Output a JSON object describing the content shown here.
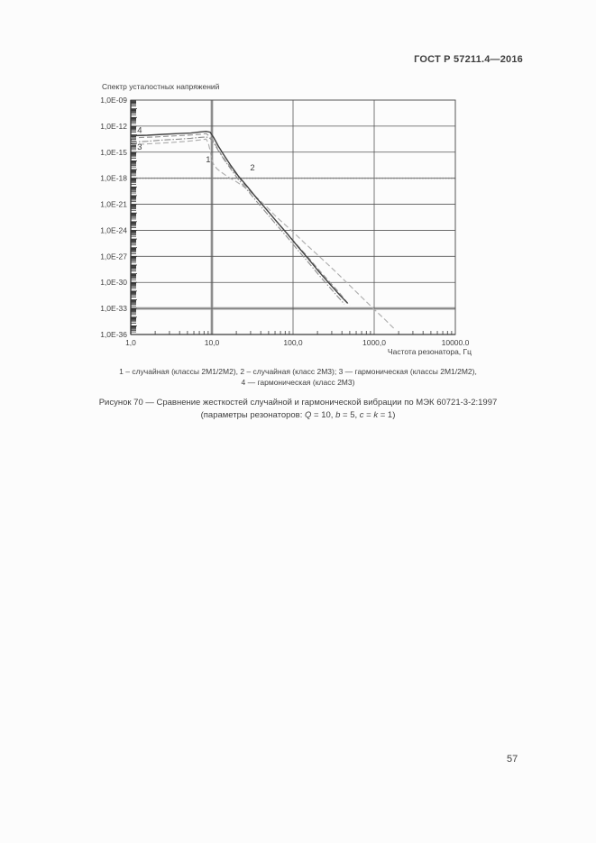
{
  "page": {
    "header": "ГОСТ Р 57211.4—2016",
    "page_number": "57"
  },
  "figure": {
    "legend_line1": "1 – случайная (классы 2М1/2М2), 2 – случайная (класс 2М3); 3 — гармоническая (классы 2М1/2М2),",
    "legend_line2": "4 — гармоническая (класс 2М3)",
    "caption_line1": "Рисунок 70 — Сравнение жесткостей случайной и гармонической вибрации по МЭК 60721-3-2:1997",
    "caption_params": {
      "prefix": "(параметры резонаторов: ",
      "q": "Q",
      "eq1": " = 10, ",
      "b": "b",
      "eq2": " = 5, ",
      "c": "c",
      "eq3": " = ",
      "k": "k",
      "eq4": " = 1)"
    }
  },
  "chart_data": {
    "type": "line",
    "title": "Спектр усталостных напряжений",
    "xlabel": "Частота резонатора, Гц",
    "ylabel": "",
    "x_scale": "log",
    "y_scale": "log",
    "x_range_hz": [
      1,
      10000
    ],
    "y_exponent_range": [
      -9,
      -36
    ],
    "grid": true,
    "colors": {
      "grid": "#565656",
      "axis": "#383838",
      "thick_reference": "#b2b2b2",
      "dotted_reference": "#808080",
      "text": "#3e3e3e"
    },
    "x_ticks": [
      {
        "value": 1,
        "label": "1,0"
      },
      {
        "value": 10,
        "label": "10,0"
      },
      {
        "value": 100,
        "label": "100,0"
      },
      {
        "value": 1000,
        "label": "1000,0"
      },
      {
        "value": 10000,
        "label": "10000.0"
      }
    ],
    "y_ticks": [
      {
        "exponent": -9,
        "label": "1,0E-09"
      },
      {
        "exponent": -12,
        "label": "1,0E-12"
      },
      {
        "exponent": -15,
        "label": "1,0E-15"
      },
      {
        "exponent": -18,
        "label": "1,0E-18"
      },
      {
        "exponent": -21,
        "label": "1,0E-21"
      },
      {
        "exponent": -24,
        "label": "1,0E-24"
      },
      {
        "exponent": -27,
        "label": "1,0E-27"
      },
      {
        "exponent": -30,
        "label": "1,0E-30"
      },
      {
        "exponent": -33,
        "label": "1,0E-33"
      },
      {
        "exponent": -36,
        "label": "1,0E-36"
      }
    ],
    "reference_lines": [
      {
        "name": "dotted-level-line",
        "exponent": -18,
        "style": "dotted"
      },
      {
        "name": "thick-gray-horizontal",
        "exponent": -33,
        "style": "thick-gray"
      },
      {
        "name": "thick-gray-vertical",
        "x_hz": 10,
        "style": "thick-gray"
      }
    ],
    "series": [
      {
        "name": "1 – случайная (классы 2М1/2М2)",
        "label": "1",
        "style": "dashed",
        "color": "#aeaeae",
        "points": [
          [
            1,
            -14.15
          ],
          [
            2,
            -14.0
          ],
          [
            3,
            -13.9
          ],
          [
            5,
            -13.75
          ],
          [
            7,
            -13.6
          ],
          [
            8.5,
            -13.5
          ],
          [
            9,
            -13.9
          ],
          [
            9.5,
            -14.8
          ],
          [
            10,
            -15.9
          ],
          [
            10.5,
            -16.4
          ],
          [
            11.5,
            -16.9
          ],
          [
            13,
            -17.3
          ],
          [
            15,
            -17.7
          ],
          [
            17.5,
            -18.1
          ],
          [
            20,
            -18.4
          ],
          [
            25,
            -19.0
          ],
          [
            31,
            -19.7
          ],
          [
            44,
            -21.0
          ],
          [
            63,
            -22.5
          ],
          [
            95,
            -24.0
          ],
          [
            140,
            -25.5
          ],
          [
            210,
            -27.0
          ],
          [
            320,
            -28.6
          ],
          [
            480,
            -30.2
          ],
          [
            700,
            -31.7
          ],
          [
            1000,
            -33.1
          ],
          [
            1400,
            -34.4
          ],
          [
            1750,
            -35.3
          ]
        ]
      },
      {
        "name": "2 – случайная (класс 2М3)",
        "label": "2",
        "style": "dashed",
        "color": "#979797",
        "points": [
          [
            1,
            -13.35
          ],
          [
            2,
            -13.25
          ],
          [
            3,
            -13.15
          ],
          [
            5,
            -13.05
          ],
          [
            7,
            -12.95
          ],
          [
            8.5,
            -12.85
          ],
          [
            10,
            -13.4
          ],
          [
            12.5,
            -15.0
          ],
          [
            15,
            -16.1
          ],
          [
            19,
            -17.3
          ],
          [
            24,
            -18.5
          ],
          [
            32,
            -19.8
          ],
          [
            43,
            -21.2
          ],
          [
            58,
            -22.6
          ],
          [
            80,
            -24.1
          ],
          [
            110,
            -25.6
          ],
          [
            150,
            -27.0
          ],
          [
            205,
            -28.5
          ],
          [
            280,
            -29.9
          ],
          [
            380,
            -31.3
          ],
          [
            500,
            -32.7
          ]
        ]
      },
      {
        "name": "3 — гармоническая (классы 2М1/2М2)",
        "label": "3",
        "style": "dashdot",
        "color": "#8f8f8f",
        "points": [
          [
            1,
            -13.85
          ],
          [
            1.6,
            -13.75
          ],
          [
            2.5,
            -13.6
          ],
          [
            4,
            -13.5
          ],
          [
            5.5,
            -13.4
          ],
          [
            7,
            -13.3
          ],
          [
            8.5,
            -13.25
          ],
          [
            9.5,
            -13.4
          ],
          [
            10.5,
            -13.9
          ],
          [
            12,
            -14.8
          ],
          [
            14,
            -15.8
          ],
          [
            17,
            -16.9
          ],
          [
            21,
            -18.1
          ],
          [
            27,
            -19.3
          ],
          [
            35,
            -20.6
          ],
          [
            47,
            -22.0
          ],
          [
            63,
            -23.4
          ],
          [
            85,
            -24.8
          ],
          [
            115,
            -26.3
          ],
          [
            155,
            -27.7
          ],
          [
            210,
            -29.2
          ],
          [
            285,
            -30.6
          ],
          [
            360,
            -31.7
          ],
          [
            430,
            -32.5
          ]
        ]
      },
      {
        "name": "4 — гармоническая (класс 2М3)",
        "label": "4",
        "style": "solid",
        "color": "#424242",
        "points": [
          [
            1,
            -13.1
          ],
          [
            1.6,
            -13.05
          ],
          [
            2.5,
            -12.95
          ],
          [
            4,
            -12.85
          ],
          [
            5.5,
            -12.8
          ],
          [
            7,
            -12.68
          ],
          [
            8.5,
            -12.6
          ],
          [
            9.5,
            -12.7
          ],
          [
            10.5,
            -13.3
          ],
          [
            12,
            -14.3
          ],
          [
            14,
            -15.3
          ],
          [
            17,
            -16.5
          ],
          [
            21,
            -17.7
          ],
          [
            27,
            -18.9
          ],
          [
            35,
            -20.2
          ],
          [
            47,
            -21.6
          ],
          [
            63,
            -23.0
          ],
          [
            85,
            -24.4
          ],
          [
            115,
            -25.9
          ],
          [
            155,
            -27.3
          ],
          [
            210,
            -28.8
          ],
          [
            285,
            -30.2
          ],
          [
            380,
            -31.5
          ],
          [
            470,
            -32.4
          ]
        ]
      }
    ],
    "series_labels_on_plot": [
      {
        "text": "4",
        "f": 1.29,
        "e": -12.5
      },
      {
        "text": "3",
        "f": 1.29,
        "e": -14.4
      },
      {
        "text": "1",
        "f": 9.0,
        "e": -15.85
      },
      {
        "text": "2",
        "f": 31.6,
        "e": -16.8
      }
    ]
  }
}
